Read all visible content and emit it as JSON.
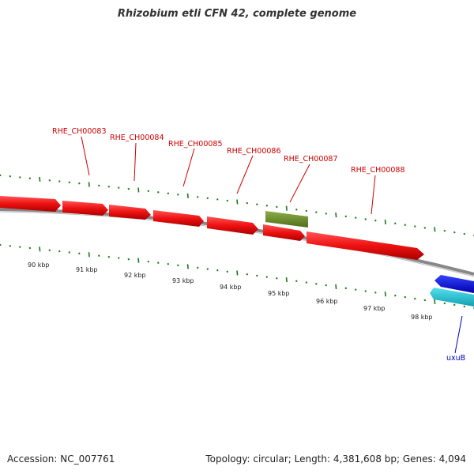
{
  "title": "Rhizobium etli CFN 42, complete genome",
  "footer": {
    "accession": "Accession: NC_007761",
    "summary": "Topology: circular; Length: 4,381,608 bp; Genes: 4,094"
  },
  "colors": {
    "background": "#ffffff",
    "forward_gene": "#ee1111",
    "gene_label": "#cc0000",
    "other_feature": "#6b8e23",
    "reverse_gene": "#0000dd",
    "reverse_feature": "#22c8d8",
    "reverse_label": "#0000bb",
    "backbone": "#888888",
    "ticks": "#1a7a1a"
  },
  "gene_labels": {
    "g83": "RHE_CH00083",
    "g84": "RHE_CH00084",
    "g85": "RHE_CH00085",
    "g86": "RHE_CH00086",
    "g87": "RHE_CH00087",
    "g88": "RHE_CH00088",
    "uxub": "uxuB"
  },
  "kbp_labels": {
    "k90": "90 kbp",
    "k91": "91 kbp",
    "k92": "92 kbp",
    "k93": "93 kbp",
    "k94": "94 kbp",
    "k95": "95 kbp",
    "k96": "96 kbp",
    "k97": "97 kbp",
    "k98": "98 kbp"
  }
}
